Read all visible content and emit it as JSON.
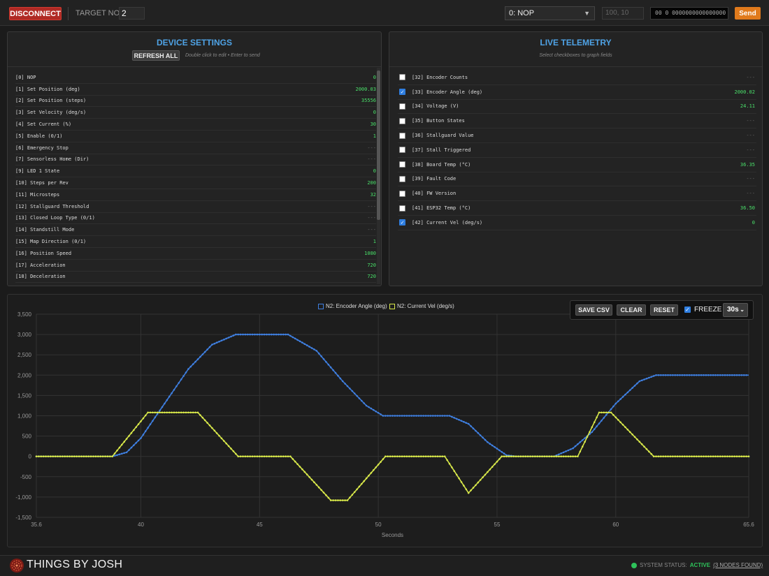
{
  "topbar": {
    "disconnect_label": "DISCONNECT",
    "target_node_label": "TARGET NODE",
    "target_node_value": "2",
    "command_selected": "0: NOP",
    "args_placeholder": "100, 10",
    "hex_value": "00 0 0000000000000000",
    "send_label": "Send"
  },
  "device_settings": {
    "title": "DEVICE SETTINGS",
    "refresh_label": "REFRESH ALL",
    "hint": "Double click to edit • Enter to send",
    "rows": [
      {
        "label": "[0] NOP",
        "value": "0"
      },
      {
        "label": "[1] Set Position (deg)",
        "value": "2000.03"
      },
      {
        "label": "[2] Set Position (steps)",
        "value": "35556"
      },
      {
        "label": "[3] Set Velocity (deg/s)",
        "value": "0"
      },
      {
        "label": "[4] Set Current (%)",
        "value": "30"
      },
      {
        "label": "[5] Enable (0/1)",
        "value": "1"
      },
      {
        "label": "[6] Emergency Stop",
        "value": "---"
      },
      {
        "label": "[7] Sensorless Home (Dir)",
        "value": "---"
      },
      {
        "label": "[9] LED 1 State",
        "value": "0"
      },
      {
        "label": "[10] Steps per Rev",
        "value": "200"
      },
      {
        "label": "[11] Microsteps",
        "value": "32"
      },
      {
        "label": "[12] Stallguard Threshold",
        "value": "---"
      },
      {
        "label": "[13] Closed Loop Type (0/1)",
        "value": "---"
      },
      {
        "label": "[14] Standstill Mode",
        "value": "---"
      },
      {
        "label": "[15] Map Direction (0/1)",
        "value": "1"
      },
      {
        "label": "[16] Position Speed",
        "value": "1080"
      },
      {
        "label": "[17] Acceleration",
        "value": "720"
      },
      {
        "label": "[18] Deceleration",
        "value": "720"
      }
    ]
  },
  "live_telemetry": {
    "title": "LIVE TELEMETRY",
    "hint": "Select checkboxes to graph fields",
    "rows": [
      {
        "label": "[32] Encoder Counts",
        "value": "---",
        "checked": false
      },
      {
        "label": "[33] Encoder Angle (deg)",
        "value": "2000.02",
        "checked": true
      },
      {
        "label": "[34] Voltage (V)",
        "value": "24.11",
        "checked": false
      },
      {
        "label": "[35] Button States",
        "value": "---",
        "checked": false
      },
      {
        "label": "[36] Stallguard Value",
        "value": "---",
        "checked": false
      },
      {
        "label": "[37] Stall Triggered",
        "value": "---",
        "checked": false
      },
      {
        "label": "[38] Board Temp (°C)",
        "value": "36.35",
        "checked": false
      },
      {
        "label": "[39] Fault Code",
        "value": "---",
        "checked": false
      },
      {
        "label": "[40] FW Version",
        "value": "---",
        "checked": false
      },
      {
        "label": "[41] ESP32 Temp (°C)",
        "value": "36.50",
        "checked": false
      },
      {
        "label": "[42] Current Vel (deg/s)",
        "value": "0",
        "checked": true
      }
    ]
  },
  "chart_controls": {
    "save_csv": "SAVE CSV",
    "clear": "CLEAR",
    "reset": "RESET",
    "freeze_label": "FREEZE",
    "freeze_checked": true,
    "window": "30s"
  },
  "chart_data": {
    "type": "line",
    "xlabel": "Seconds",
    "ylabel": "",
    "xlim": [
      35.6,
      65.6
    ],
    "ylim": [
      -1500,
      3500
    ],
    "x_ticks": [
      "35.6",
      "40",
      "45",
      "50",
      "55",
      "60",
      "65.6"
    ],
    "y_ticks": [
      "3,500",
      "3,000",
      "2,500",
      "2,000",
      "1,500",
      "1,000",
      "500",
      "0",
      "-500",
      "-1,000",
      "-1,500"
    ],
    "grid": true,
    "legend_position": "top-center",
    "series": [
      {
        "name": "N2: Encoder Angle (deg)",
        "color": "#3f7fe0",
        "points": [
          [
            35.6,
            0
          ],
          [
            38.8,
            0
          ],
          [
            39.4,
            100
          ],
          [
            40,
            450
          ],
          [
            41,
            1300
          ],
          [
            42,
            2150
          ],
          [
            43,
            2750
          ],
          [
            44,
            3000
          ],
          [
            46.2,
            3000
          ],
          [
            47.4,
            2600
          ],
          [
            48.5,
            1850
          ],
          [
            49.5,
            1250
          ],
          [
            50.2,
            1000
          ],
          [
            53,
            1000
          ],
          [
            53.8,
            800
          ],
          [
            54.6,
            350
          ],
          [
            55.4,
            30
          ],
          [
            55.8,
            0
          ],
          [
            57.4,
            0
          ],
          [
            58.2,
            200
          ],
          [
            59,
            600
          ],
          [
            60,
            1300
          ],
          [
            61,
            1850
          ],
          [
            61.7,
            2000
          ],
          [
            65.6,
            2000
          ]
        ]
      },
      {
        "name": "N2: Current Vel (deg/s)",
        "color": "#d8e84a",
        "points": [
          [
            35.6,
            0
          ],
          [
            38.8,
            0
          ],
          [
            40.3,
            1080
          ],
          [
            42.4,
            1080
          ],
          [
            44.1,
            0
          ],
          [
            46.3,
            0
          ],
          [
            48,
            -1080
          ],
          [
            48.7,
            -1080
          ],
          [
            50.3,
            0
          ],
          [
            52.8,
            0
          ],
          [
            53.8,
            -900
          ],
          [
            55.2,
            0
          ],
          [
            58.4,
            0
          ],
          [
            59.3,
            1080
          ],
          [
            59.8,
            1080
          ],
          [
            61.6,
            0
          ],
          [
            65.6,
            0
          ]
        ]
      }
    ]
  },
  "footer": {
    "logo_text": "THINGS BY JOSH",
    "status_label": "SYSTEM STATUS:",
    "status_value": "ACTIVE",
    "nodes_found": "(3 NODES FOUND)"
  },
  "colors": {
    "accent_blue": "#4fa3e6",
    "value_green": "#4ae06a",
    "disconnect_red": "#b02a24",
    "send_orange": "#e07a1c"
  }
}
